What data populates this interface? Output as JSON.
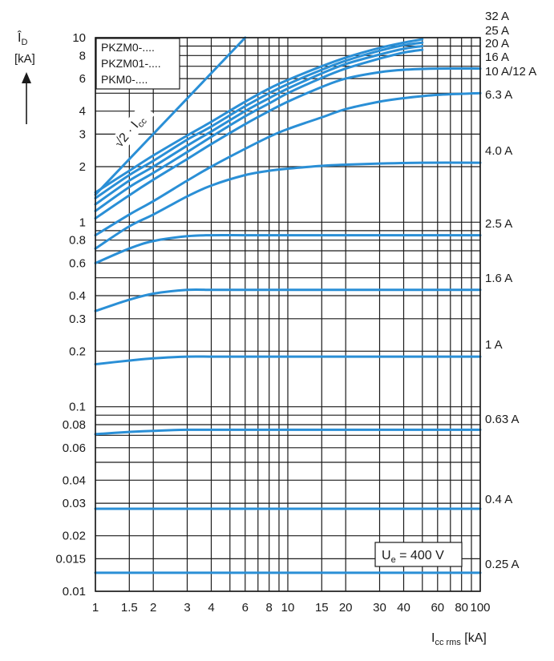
{
  "chart_data": {
    "type": "line",
    "title": "",
    "x_scale": "log",
    "y_scale": "log",
    "xlim": [
      1,
      100
    ],
    "ylim": [
      0.01,
      10
    ],
    "grid": true,
    "x_ticks": [
      1,
      1.5,
      2,
      3,
      4,
      6,
      8,
      10,
      15,
      20,
      30,
      40,
      60,
      80,
      100
    ],
    "x_tick_labels": [
      "1",
      "1.5",
      "2",
      "3",
      "4",
      "6",
      "8",
      "10",
      "15",
      "20",
      "30",
      "40",
      "60",
      "80",
      "100"
    ],
    "y_ticks": [
      0.01,
      0.015,
      0.02,
      0.03,
      0.04,
      0.06,
      0.08,
      0.1,
      0.2,
      0.3,
      0.4,
      0.6,
      0.8,
      1,
      2,
      3,
      4,
      6,
      8,
      10
    ],
    "y_tick_labels": [
      "0.01",
      "0.015",
      "0.02",
      "0.03",
      "0.04",
      "0.06",
      "0.08",
      "0.1",
      "0.2",
      "0.3",
      "0.4",
      "0.6",
      "0.8",
      "1",
      "2",
      "3",
      "4",
      "6",
      "8",
      "10"
    ],
    "ylabel_symbol": "Î",
    "ylabel_sub": "D",
    "ylabel_unit": "[kA]",
    "xlabel_main": "I",
    "xlabel_sub": "cc rms",
    "xlabel_unit": " [kA]",
    "legend_lines": [
      "PKZM0-....",
      "PKZM01-....",
      "PKM0-...."
    ],
    "legend_placement": "top-left",
    "ue_main": "U",
    "ue_sub": "e",
    "ue_rest": " = 400 V",
    "reference_line": {
      "label_base": "√2 · I",
      "label_sub": "cc",
      "x": [
        1,
        6
      ],
      "y": [
        1.41,
        10
      ]
    },
    "series_color": "#2a8fd6",
    "series": [
      {
        "name": "32 A",
        "x": [
          1,
          1.5,
          2,
          3,
          4,
          6,
          8,
          10,
          15,
          20,
          30,
          40,
          50
        ],
        "y": [
          1.45,
          1.9,
          2.3,
          2.95,
          3.5,
          4.5,
          5.3,
          5.9,
          7.0,
          7.8,
          8.8,
          9.4,
          9.8
        ]
      },
      {
        "name": "25 A",
        "x": [
          1,
          1.5,
          2,
          3,
          4,
          6,
          8,
          10,
          15,
          20,
          30,
          40,
          50
        ],
        "y": [
          1.35,
          1.8,
          2.15,
          2.8,
          3.3,
          4.25,
          5.0,
          5.6,
          6.7,
          7.5,
          8.5,
          9.1,
          9.4
        ]
      },
      {
        "name": "20 A",
        "x": [
          1,
          1.5,
          2,
          3,
          4,
          6,
          8,
          10,
          15,
          20,
          30,
          40,
          50
        ],
        "y": [
          1.25,
          1.68,
          2.0,
          2.6,
          3.1,
          4.0,
          4.7,
          5.3,
          6.4,
          7.2,
          8.1,
          8.7,
          9.0
        ]
      },
      {
        "name": "16 A",
        "x": [
          1,
          1.5,
          2,
          3,
          4,
          6,
          8,
          10,
          15,
          20,
          30,
          40,
          50
        ],
        "y": [
          1.15,
          1.55,
          1.85,
          2.4,
          2.9,
          3.75,
          4.4,
          5.0,
          6.05,
          6.8,
          7.7,
          8.3,
          8.6
        ]
      },
      {
        "name": "10 A/12 A",
        "x": [
          1,
          1.5,
          2,
          3,
          4,
          6,
          8,
          10,
          15,
          20,
          30,
          40,
          60,
          100
        ],
        "y": [
          1.05,
          1.4,
          1.7,
          2.2,
          2.65,
          3.4,
          4.0,
          4.5,
          5.4,
          6.0,
          6.5,
          6.7,
          6.8,
          6.8
        ]
      },
      {
        "name": "6.3 A",
        "x": [
          1,
          1.5,
          2,
          3,
          4,
          6,
          8,
          10,
          15,
          20,
          30,
          40,
          60,
          100
        ],
        "y": [
          0.85,
          1.1,
          1.3,
          1.68,
          2.0,
          2.5,
          2.9,
          3.2,
          3.7,
          4.1,
          4.5,
          4.7,
          4.9,
          5.0
        ]
      },
      {
        "name": "4.0 A",
        "x": [
          1,
          1.5,
          2,
          3,
          4,
          6,
          8,
          10,
          15,
          20,
          30,
          50,
          100
        ],
        "y": [
          0.72,
          0.95,
          1.1,
          1.38,
          1.58,
          1.8,
          1.9,
          1.95,
          2.02,
          2.05,
          2.08,
          2.1,
          2.1
        ]
      },
      {
        "name": "2.5 A",
        "x": [
          1,
          1.5,
          2,
          3,
          4,
          6,
          10,
          20,
          50,
          100
        ],
        "y": [
          0.6,
          0.72,
          0.79,
          0.84,
          0.85,
          0.85,
          0.85,
          0.85,
          0.85,
          0.85
        ]
      },
      {
        "name": "1.6 A",
        "x": [
          1,
          1.5,
          2,
          3,
          4,
          6,
          10,
          20,
          50,
          100
        ],
        "y": [
          0.33,
          0.38,
          0.41,
          0.43,
          0.43,
          0.43,
          0.43,
          0.43,
          0.43,
          0.43
        ]
      },
      {
        "name": "1 A",
        "x": [
          1,
          1.5,
          2,
          3,
          4,
          6,
          10,
          20,
          50,
          100
        ],
        "y": [
          0.17,
          0.178,
          0.183,
          0.187,
          0.187,
          0.187,
          0.187,
          0.187,
          0.187,
          0.187
        ]
      },
      {
        "name": "0.63 A",
        "x": [
          1,
          1.5,
          2,
          3,
          6,
          10,
          20,
          50,
          100
        ],
        "y": [
          0.071,
          0.073,
          0.074,
          0.075,
          0.075,
          0.075,
          0.075,
          0.075,
          0.075
        ]
      },
      {
        "name": "0.4 A",
        "x": [
          1,
          100
        ],
        "y": [
          0.028,
          0.028
        ]
      },
      {
        "name": "0.25 A",
        "x": [
          1,
          100
        ],
        "y": [
          0.0126,
          0.0126
        ]
      }
    ]
  }
}
